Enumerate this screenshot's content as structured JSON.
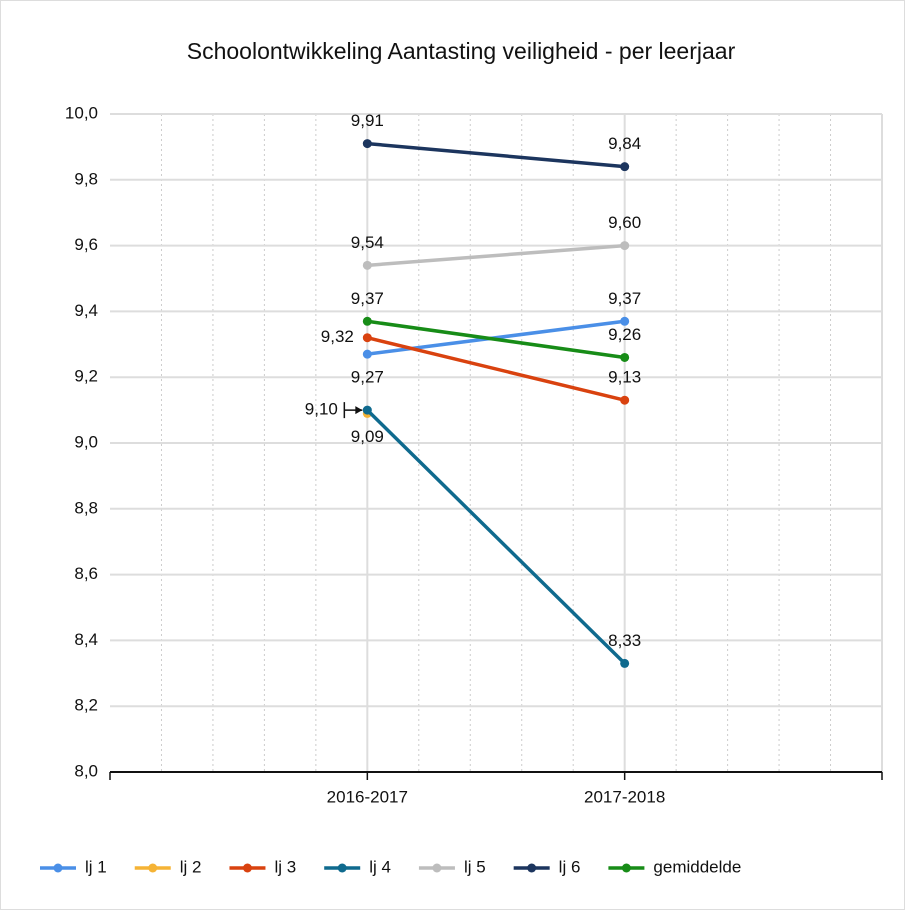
{
  "chart_data": {
    "type": "line",
    "title": "Schoolontwikkeling Aantasting veiligheid - per leerjaar",
    "categories": [
      "2016-2017",
      "2017-2018"
    ],
    "ylim": [
      8.0,
      10.0
    ],
    "yticks": [
      {
        "value": 8.0,
        "label": "8,0"
      },
      {
        "value": 8.2,
        "label": "8,2"
      },
      {
        "value": 8.4,
        "label": "8,4"
      },
      {
        "value": 8.6,
        "label": "8,6"
      },
      {
        "value": 8.8,
        "label": "8,8"
      },
      {
        "value": 9.0,
        "label": "9,0"
      },
      {
        "value": 9.2,
        "label": "9,2"
      },
      {
        "value": 9.4,
        "label": "9,4"
      },
      {
        "value": 9.6,
        "label": "9,6"
      },
      {
        "value": 9.8,
        "label": "9,8"
      },
      {
        "value": 10.0,
        "label": "10,0"
      }
    ],
    "grid": true,
    "legend": "bottom",
    "series": [
      {
        "name": "lj 1",
        "color": "#4a8fe7",
        "values": [
          9.27,
          9.37
        ],
        "value_labels": [
          "9,27",
          "9,37"
        ]
      },
      {
        "name": "lj 2",
        "color": "#f5b335",
        "values": [
          9.09,
          null
        ],
        "value_labels": [
          "9,09",
          null
        ]
      },
      {
        "name": "lj 3",
        "color": "#d9420f",
        "values": [
          9.32,
          9.13
        ],
        "value_labels": [
          "9,32",
          "9,13"
        ]
      },
      {
        "name": "lj 4",
        "color": "#0f6a8e",
        "values": [
          9.1,
          8.33
        ],
        "value_labels": [
          "9,10",
          "8,33"
        ]
      },
      {
        "name": "lj 5",
        "color": "#bdbdbd",
        "values": [
          9.54,
          9.6
        ],
        "value_labels": [
          "9,54",
          "9,60"
        ]
      },
      {
        "name": "lj 6",
        "color": "#1c355e",
        "values": [
          9.91,
          9.84
        ],
        "value_labels": [
          "9,91",
          "9,84"
        ]
      },
      {
        "name": "gemiddelde",
        "color": "#178c17",
        "values": [
          9.37,
          9.26
        ],
        "value_labels": [
          "9,37",
          "9,26"
        ]
      }
    ]
  }
}
